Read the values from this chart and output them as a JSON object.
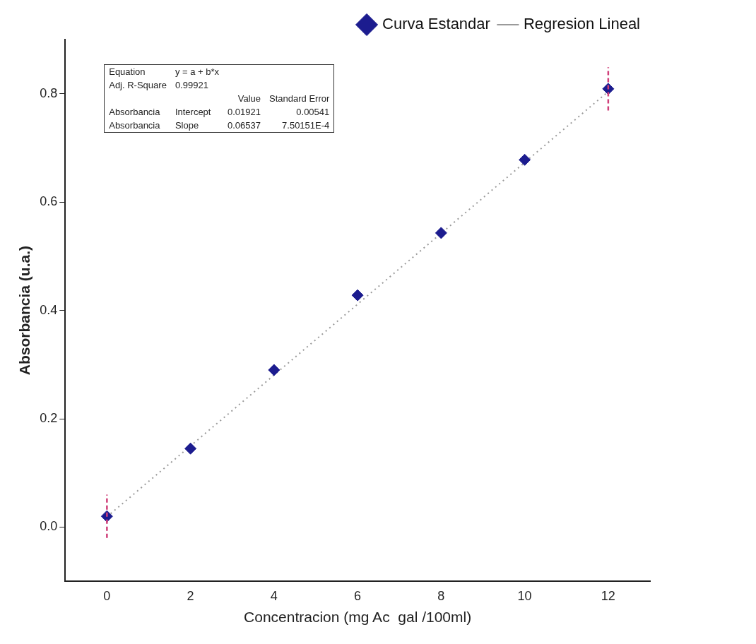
{
  "chart_data": {
    "type": "scatter",
    "xlabel": "Concentracion (mg Ac  gal /100ml)",
    "ylabel": "Absorbancia (u.a.)",
    "x": [
      0,
      2,
      4,
      6,
      8,
      10,
      12
    ],
    "series": [
      {
        "name": "Curva Estandar",
        "color": "#1c1c8f",
        "values": [
          0.02,
          0.145,
          0.29,
          0.428,
          0.543,
          0.678,
          0.809
        ],
        "errors": [
          0.04,
          null,
          null,
          null,
          null,
          null,
          0.04
        ]
      },
      {
        "name": "Regresion Lineal",
        "type": "line",
        "color": "#9a9a9a",
        "x": [
          0,
          12
        ],
        "values": [
          0.019,
          0.804
        ],
        "line_style": "dotted",
        "marker": "none"
      }
    ],
    "marker": "diamond",
    "xlim": [
      -1,
      13
    ],
    "xticks": [
      0,
      2,
      4,
      6,
      8,
      10,
      12
    ],
    "ylim": [
      -0.1,
      0.9
    ],
    "yticks": [
      {
        "value": 0,
        "label": "0.0"
      },
      0.2,
      0.4,
      0.6,
      0.8
    ],
    "grid": false,
    "legend": "top right",
    "annotations": [
      "Equation",
      "y = a + b*x",
      "Adj. R-Square",
      "0.99921",
      "Value",
      "Standard Error",
      "Absorbancia",
      "Intercept",
      "0.01921",
      "0.00541",
      "Absorbancia",
      "Slope",
      "0.06537",
      "7.50151E-4"
    ]
  }
}
